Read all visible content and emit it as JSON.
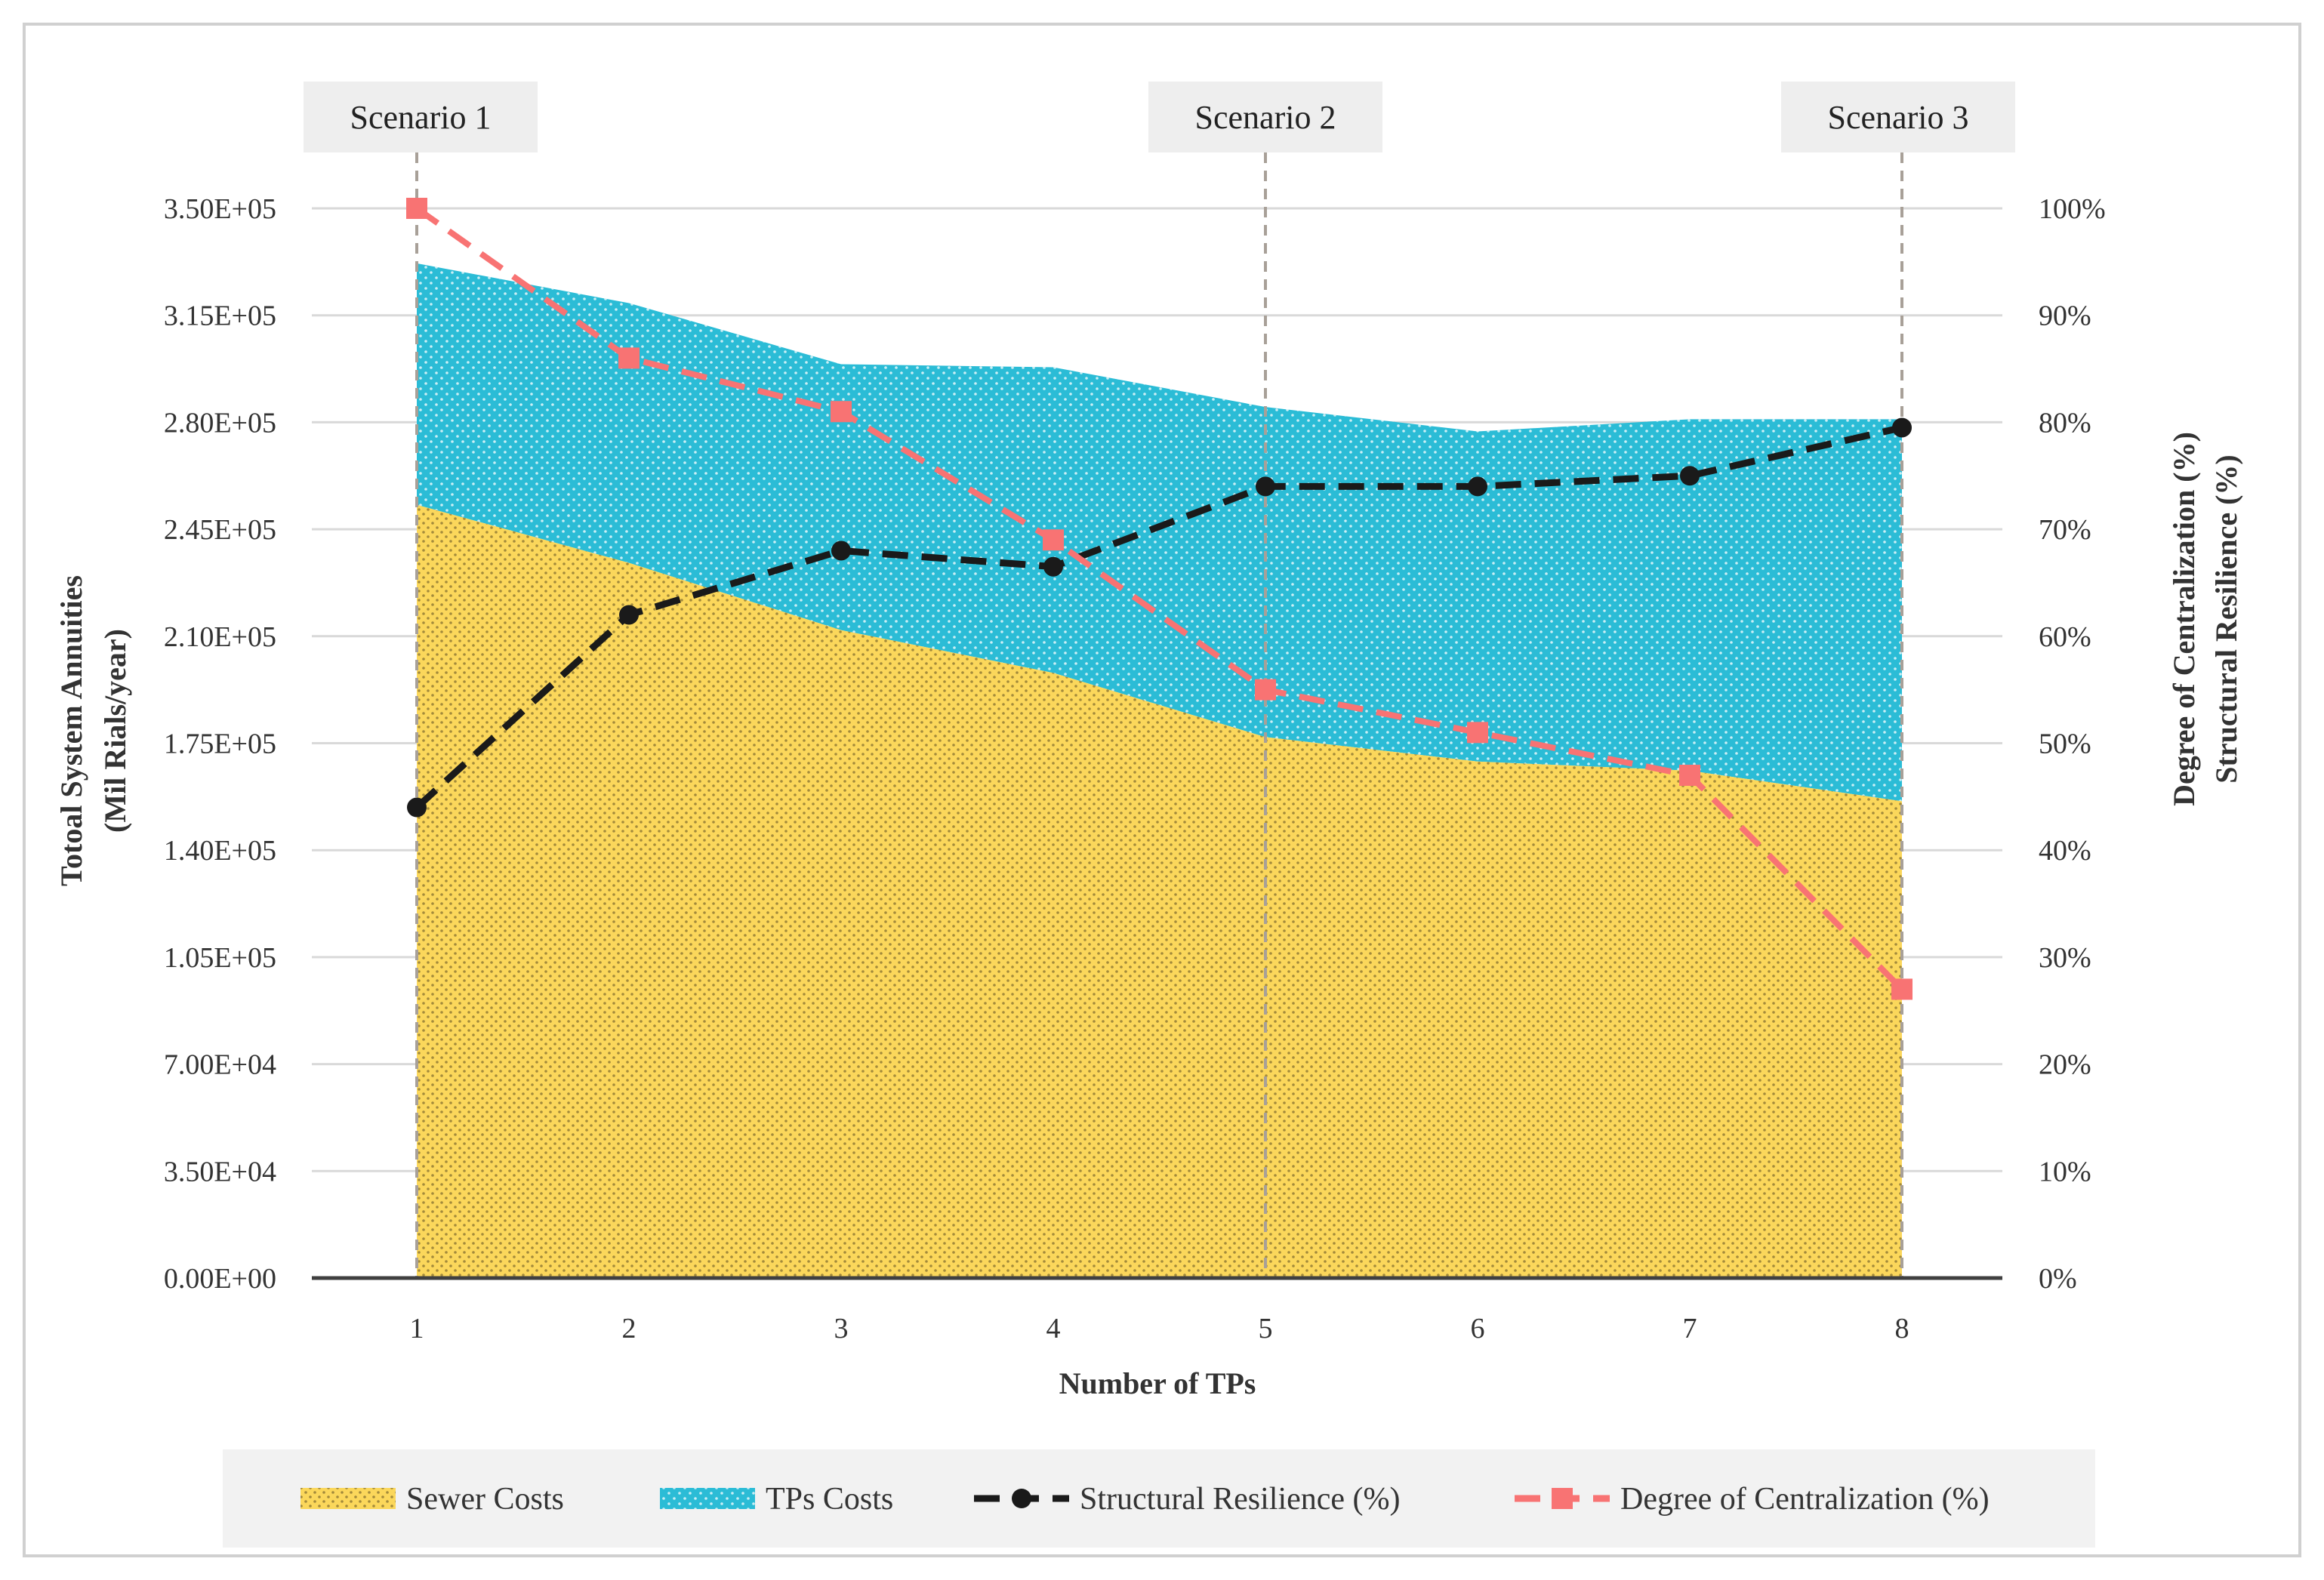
{
  "chart_data": {
    "type": "area",
    "x_label": "Number of TPs",
    "y_left_label_line1": "Totoal System Annuities",
    "y_left_label_line2": "(Mil Rials/year)",
    "y_right_label_line1": "Degree of Centralization (%)",
    "y_right_label_line2": "Structural Resilience (%)",
    "categories": [
      "1",
      "2",
      "3",
      "4",
      "5",
      "6",
      "7",
      "8"
    ],
    "y_left_range": [
      0,
      350000
    ],
    "y_right_range": [
      0,
      100
    ],
    "y_left_ticks": [
      "0.00E+00",
      "3.50E+04",
      "7.00E+04",
      "1.05E+05",
      "1.40E+05",
      "1.75E+05",
      "2.10E+05",
      "2.45E+05",
      "2.80E+05",
      "3.15E+05",
      "3.50E+05"
    ],
    "y_right_ticks": [
      "0%",
      "10%",
      "20%",
      "30%",
      "40%",
      "50%",
      "60%",
      "70%",
      "80%",
      "90%",
      "100%"
    ],
    "series": [
      {
        "name": "Sewer Costs",
        "kind": "stacked-area",
        "color": "#FBD75B",
        "values": [
          253000,
          234000,
          212000,
          198000,
          177000,
          169000,
          166000,
          156000
        ]
      },
      {
        "name": "TPs Costs",
        "kind": "stacked-area",
        "color": "#2BBCD6",
        "values": [
          79000,
          85000,
          87000,
          100000,
          108000,
          108000,
          115000,
          125000
        ]
      },
      {
        "name": "Structural Resilience (%)",
        "kind": "line",
        "axis": "right",
        "color": "#1a1a1a",
        "values": [
          44,
          62,
          68,
          66.5,
          74,
          74,
          75,
          79.5
        ]
      },
      {
        "name": "Degree of Centralization (%)",
        "kind": "line",
        "axis": "right",
        "color": "#F87373",
        "values": [
          100,
          86,
          81,
          69,
          55,
          51,
          47,
          27
        ]
      }
    ],
    "scenarios": [
      {
        "label": "Scenario 1",
        "at": "1"
      },
      {
        "label": "Scenario 2",
        "at": "5"
      },
      {
        "label": "Scenario 3",
        "at": "8"
      }
    ],
    "grid": true,
    "legend_position": "bottom"
  },
  "colors": {
    "grid": "#d9d9d9",
    "axis": "#404040",
    "scenario_box": "#eeeeee",
    "scenario_line": "#a8a098",
    "legend_box": "#f2f2f2"
  }
}
